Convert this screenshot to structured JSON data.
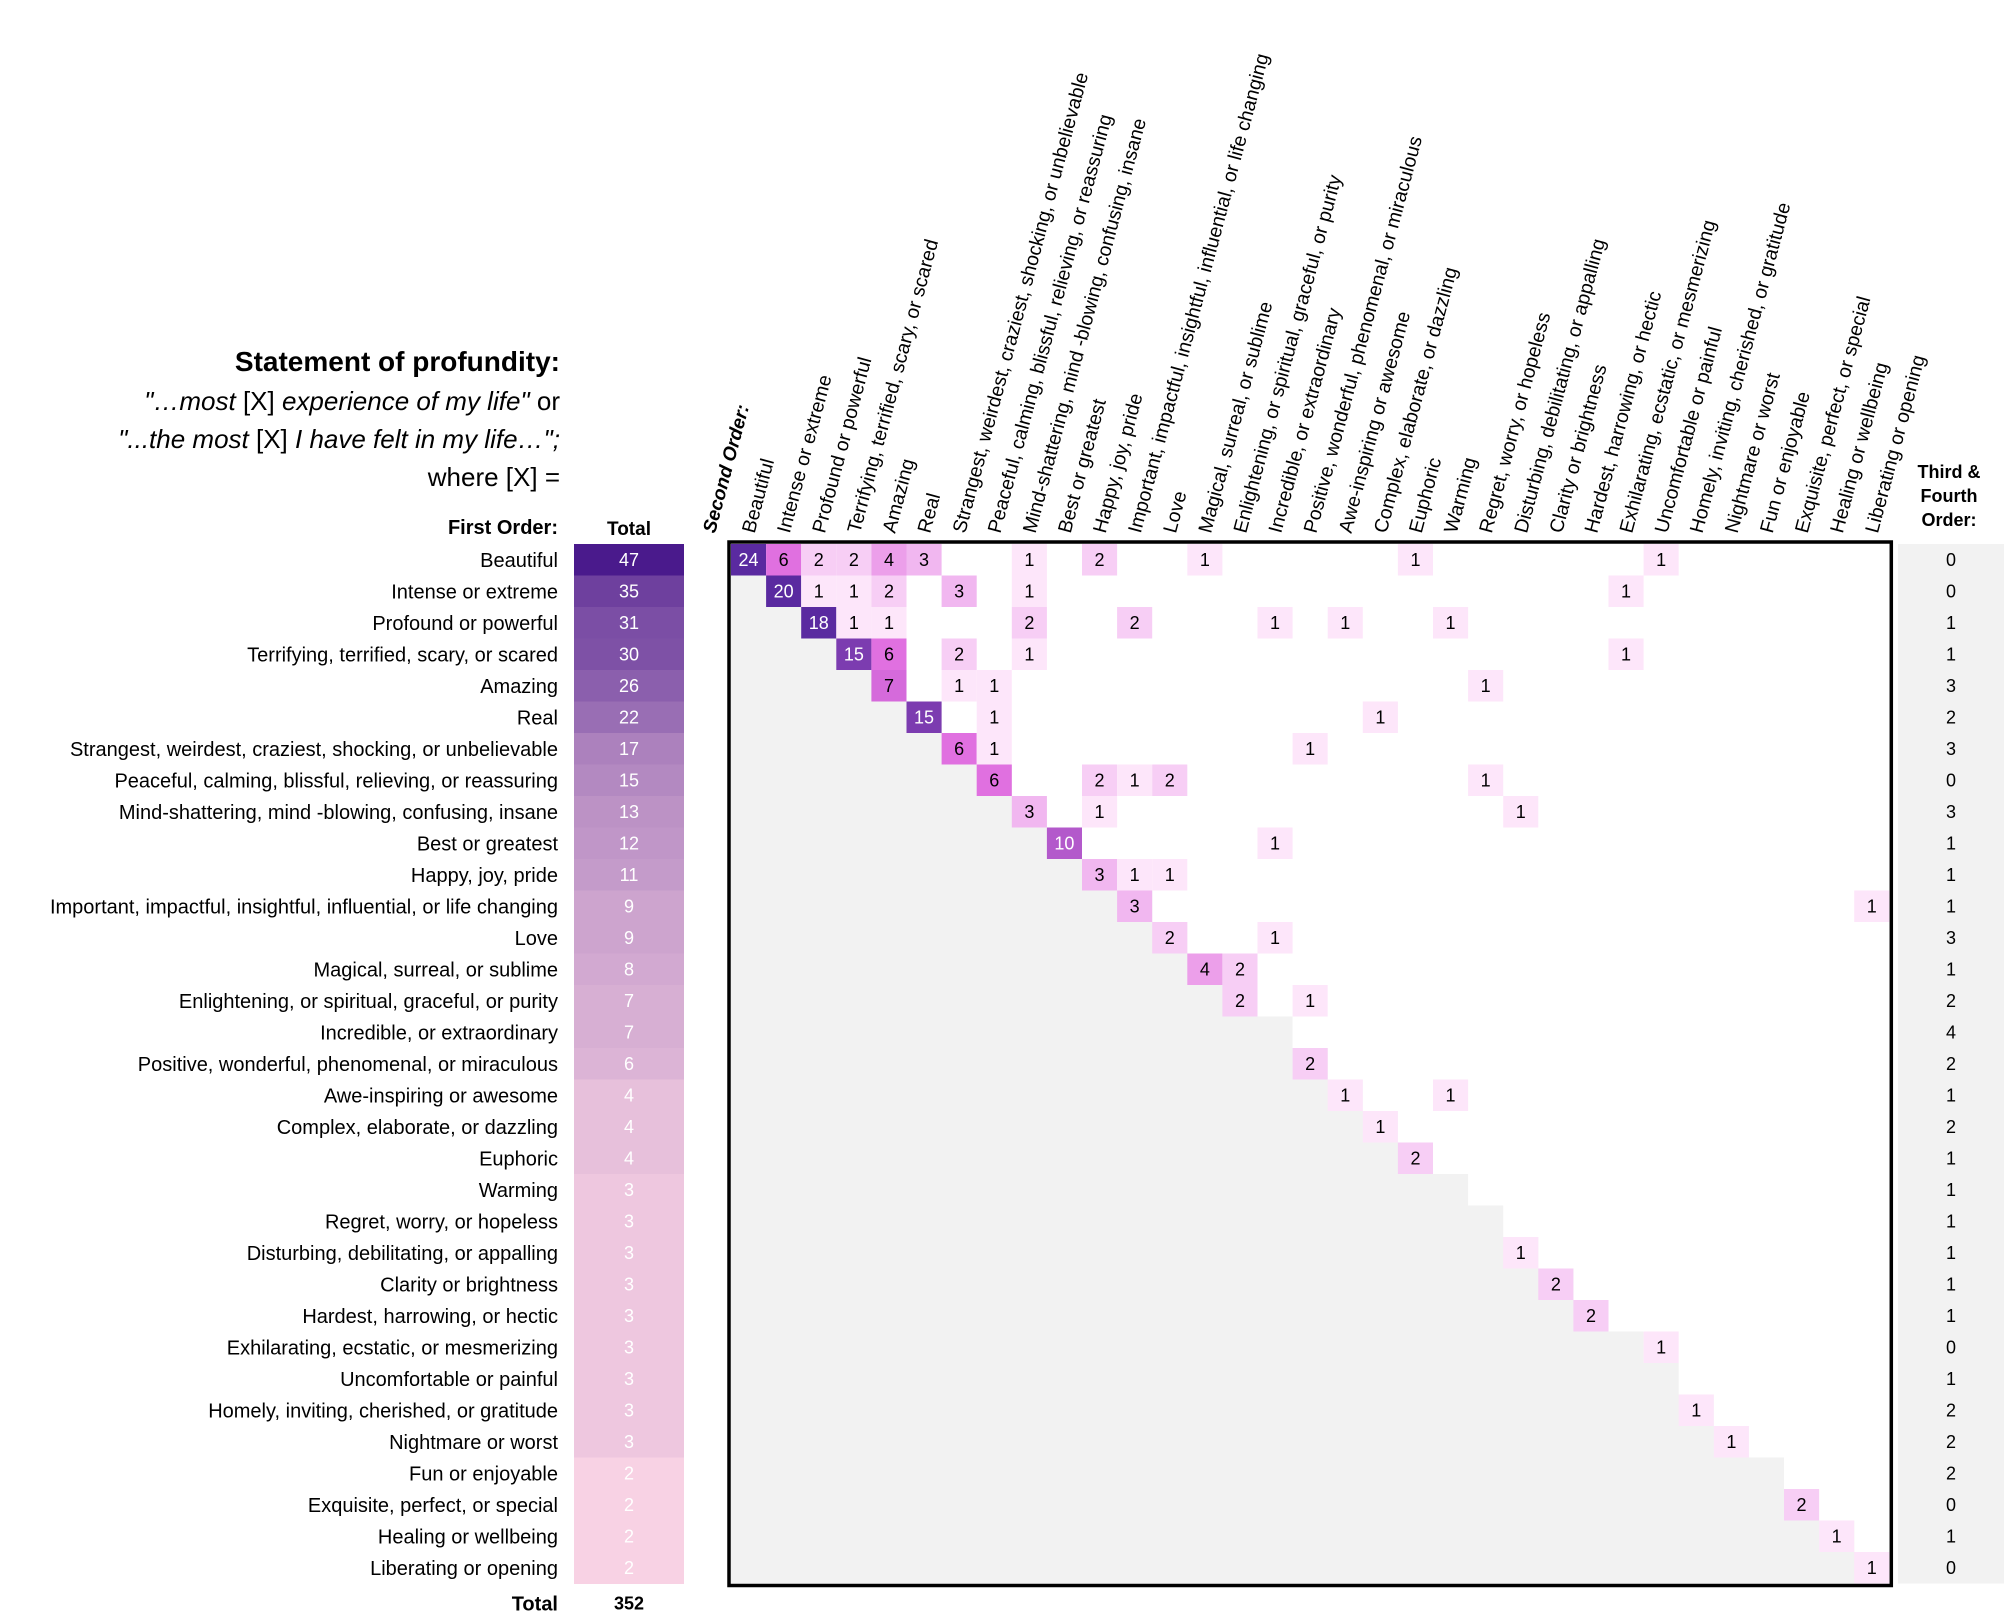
{
  "header": {
    "title": "Statement of profundity:",
    "line1": {
      "q1": "\"…most ",
      "x": "[X]",
      "q2": " experience of my life\"",
      "tail": " or"
    },
    "line2": {
      "q1": "\"...the most ",
      "x": "[X]",
      "q2": " I have felt in my life…\";"
    },
    "line3": "where [X] ="
  },
  "chart_data": {
    "type": "heatmap",
    "row_header": "First Order:",
    "total_header": "Total",
    "column_header": "Second Order:",
    "third_header": [
      "Third &",
      "Fourth",
      "Order:"
    ],
    "total_label": "Total",
    "grand_total": 352,
    "colors": {
      "matrix_bg": "#f2f2f2",
      "total_dark": "#4a1a8c",
      "total_light": "#f8d2e4",
      "cell_dark": "#5a2aa0",
      "cell_mid": "#e070e0",
      "cell_light": "#fde6fa",
      "border": "#000000",
      "third_bg": "#f2f2f2"
    },
    "categories": [
      "Beautiful",
      "Intense or extreme",
      "Profound or powerful",
      "Terrifying, terrified, scary, or scared",
      "Amazing",
      "Real",
      "Strangest, weirdest, craziest, shocking, or unbelievable",
      "Peaceful, calming, blissful, relieving, or reassuring",
      "Mind-shattering, mind -blowing, confusing, insane",
      "Best or greatest",
      "Happy, joy, pride",
      "Important, impactful, insightful, influential, or life changing",
      "Love",
      "Magical, surreal, or sublime",
      "Enlightening, or spiritual, graceful, or purity",
      "Incredible, or extraordinary",
      "Positive, wonderful, phenomenal, or miraculous",
      "Awe-inspiring or awesome",
      "Complex, elaborate, or dazzling",
      "Euphoric",
      "Warming",
      "Regret, worry, or hopeless",
      "Disturbing, debilitating, or appalling",
      "Clarity or brightness",
      "Hardest, harrowing, or hectic",
      "Exhilarating, ecstatic, or mesmerizing",
      "Uncomfortable or painful",
      "Homely, inviting, cherished, or gratitude",
      "Nightmare or worst",
      "Fun or enjoyable",
      "Exquisite, perfect, or special",
      "Healing or wellbeing",
      "Liberating or opening"
    ],
    "totals": [
      47,
      35,
      31,
      30,
      26,
      22,
      17,
      15,
      13,
      12,
      11,
      9,
      9,
      8,
      7,
      7,
      6,
      4,
      4,
      4,
      3,
      3,
      3,
      3,
      3,
      3,
      3,
      3,
      3,
      2,
      2,
      2,
      2
    ],
    "third_fourth": [
      0,
      0,
      1,
      1,
      3,
      2,
      3,
      0,
      3,
      1,
      1,
      1,
      3,
      1,
      2,
      4,
      2,
      1,
      2,
      1,
      1,
      1,
      1,
      1,
      1,
      0,
      1,
      2,
      2,
      2,
      0,
      1,
      0
    ],
    "cells": [
      [
        0,
        0,
        24
      ],
      [
        0,
        1,
        6
      ],
      [
        0,
        2,
        2
      ],
      [
        0,
        3,
        2
      ],
      [
        0,
        4,
        4
      ],
      [
        0,
        5,
        3
      ],
      [
        0,
        8,
        1
      ],
      [
        0,
        10,
        2
      ],
      [
        0,
        13,
        1
      ],
      [
        0,
        19,
        1
      ],
      [
        0,
        26,
        1
      ],
      [
        1,
        1,
        20
      ],
      [
        1,
        2,
        1
      ],
      [
        1,
        3,
        1
      ],
      [
        1,
        4,
        2
      ],
      [
        1,
        6,
        3
      ],
      [
        1,
        8,
        1
      ],
      [
        1,
        25,
        1
      ],
      [
        2,
        2,
        18
      ],
      [
        2,
        3,
        1
      ],
      [
        2,
        4,
        1
      ],
      [
        2,
        8,
        2
      ],
      [
        2,
        11,
        2
      ],
      [
        2,
        15,
        1
      ],
      [
        2,
        17,
        1
      ],
      [
        2,
        20,
        1
      ],
      [
        3,
        3,
        15
      ],
      [
        3,
        4,
        6
      ],
      [
        3,
        6,
        2
      ],
      [
        3,
        8,
        1
      ],
      [
        3,
        25,
        1
      ],
      [
        4,
        4,
        7
      ],
      [
        4,
        6,
        1
      ],
      [
        4,
        7,
        1
      ],
      [
        4,
        21,
        1
      ],
      [
        5,
        5,
        15
      ],
      [
        5,
        7,
        1
      ],
      [
        5,
        18,
        1
      ],
      [
        6,
        6,
        6
      ],
      [
        6,
        7,
        1
      ],
      [
        6,
        16,
        1
      ],
      [
        7,
        7,
        6
      ],
      [
        7,
        10,
        2
      ],
      [
        7,
        11,
        1
      ],
      [
        7,
        12,
        2
      ],
      [
        7,
        21,
        1
      ],
      [
        8,
        8,
        3
      ],
      [
        8,
        10,
        1
      ],
      [
        8,
        22,
        1
      ],
      [
        9,
        9,
        10
      ],
      [
        9,
        15,
        1
      ],
      [
        10,
        10,
        3
      ],
      [
        10,
        11,
        1
      ],
      [
        10,
        12,
        1
      ],
      [
        11,
        11,
        3
      ],
      [
        11,
        32,
        1
      ],
      [
        12,
        12,
        2
      ],
      [
        12,
        15,
        1
      ],
      [
        13,
        13,
        4
      ],
      [
        13,
        14,
        2
      ],
      [
        14,
        14,
        2
      ],
      [
        14,
        16,
        1
      ],
      [
        16,
        16,
        2
      ],
      [
        17,
        17,
        1
      ],
      [
        17,
        20,
        1
      ],
      [
        18,
        18,
        1
      ],
      [
        19,
        19,
        2
      ],
      [
        22,
        22,
        1
      ],
      [
        23,
        23,
        2
      ],
      [
        24,
        24,
        2
      ],
      [
        25,
        26,
        1
      ],
      [
        27,
        27,
        1
      ],
      [
        28,
        28,
        1
      ],
      [
        30,
        30,
        2
      ],
      [
        31,
        31,
        1
      ],
      [
        32,
        32,
        1
      ]
    ]
  }
}
